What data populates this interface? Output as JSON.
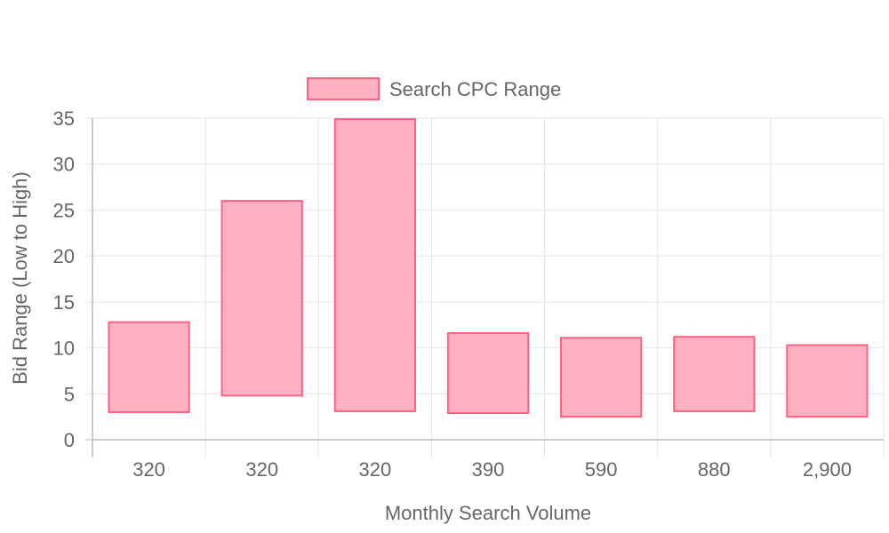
{
  "chart_data": {
    "type": "bar",
    "subtype": "floating-range",
    "categories": [
      "320",
      "320",
      "320",
      "390",
      "590",
      "880",
      "2,900"
    ],
    "series": [
      {
        "name": "Search CPC Range",
        "ranges": [
          [
            3,
            12.8
          ],
          [
            4.8,
            26
          ],
          [
            3.1,
            34.9
          ],
          [
            2.9,
            11.6
          ],
          [
            2.5,
            11.1
          ],
          [
            3.1,
            11.2
          ],
          [
            2.5,
            10.3
          ]
        ]
      }
    ],
    "xlabel": "Monthly Search Volume",
    "ylabel": "Bid Range (Low to High)",
    "ylim": [
      0,
      35
    ],
    "yticks": [
      "0",
      "5",
      "10",
      "15",
      "20",
      "25",
      "30",
      "35"
    ],
    "grid": true,
    "legend": "top-center",
    "colors": {
      "fill": "#ffb1c1",
      "stroke": "#ff6384",
      "grid": "#e5e5e5",
      "axis": "#bbbbbb",
      "text": "#666666"
    }
  }
}
